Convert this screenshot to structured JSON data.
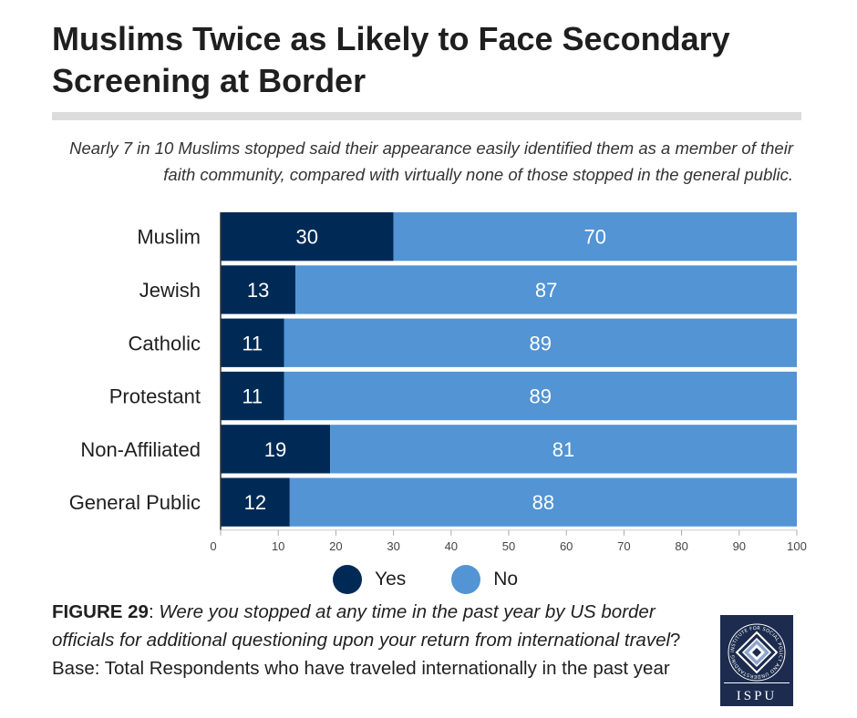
{
  "header": {
    "title": "Muslims Twice as Likely to Face Secondary Screening at Border",
    "subtitle": "Nearly 7 in 10 Muslims stopped said their appearance easily identified them as a member of their faith community, compared with virtually none of those stopped in the general public."
  },
  "chart_data": {
    "type": "bar",
    "orientation": "horizontal",
    "stacked": true,
    "categories": [
      "Muslim",
      "Jewish",
      "Catholic",
      "Protestant",
      "Non-Affiliated",
      "General Public"
    ],
    "series": [
      {
        "name": "Yes",
        "color": "#002a56",
        "values": [
          30,
          13,
          11,
          11,
          19,
          12
        ]
      },
      {
        "name": "No",
        "color": "#5294d4",
        "values": [
          70,
          87,
          89,
          89,
          81,
          88
        ]
      }
    ],
    "xlim": [
      0,
      100
    ],
    "xticks": [
      "0",
      "10",
      "20",
      "30",
      "40",
      "50",
      "60",
      "70",
      "80",
      "90",
      "100"
    ],
    "legend_position": "bottom",
    "grid": false
  },
  "legend": {
    "yes_label": "Yes",
    "no_label": "No",
    "yes_color": "#002a56",
    "no_color": "#5294d4"
  },
  "caption": {
    "figure_label": "FIGURE 29",
    "separator": ": ",
    "question": "Were you stopped at any time in the past year by US border officials for additional questioning upon your return from international travel",
    "question_mark": "?",
    "base_text": " Base: Total Respondents who have traveled internationally in the past year"
  },
  "logo": {
    "word": "ISPU",
    "ring_text": "INSTITUTE FOR SOCIAL POLICY AND UNDERSTANDING",
    "color": "#1c2b4e"
  }
}
